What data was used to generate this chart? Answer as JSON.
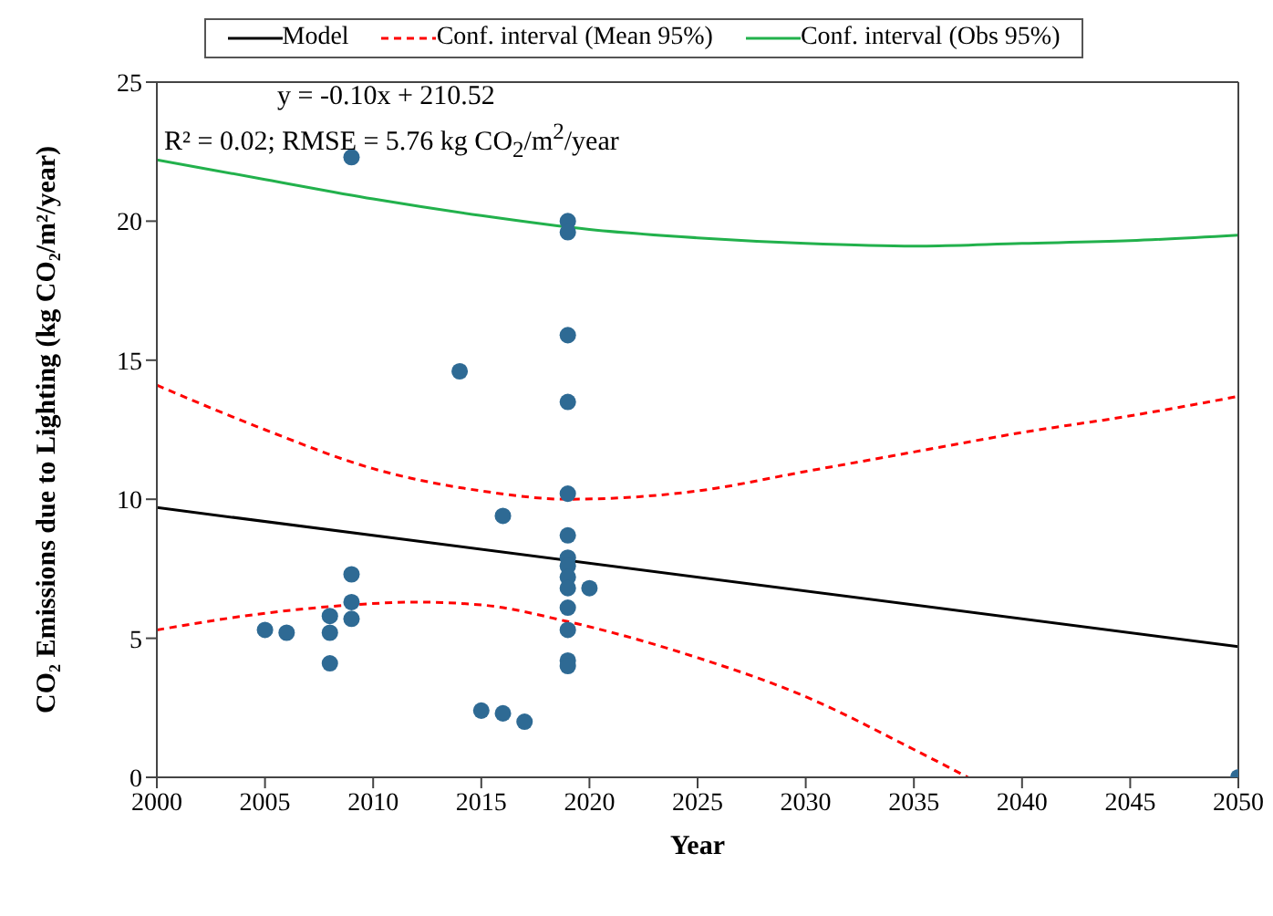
{
  "chart_data": {
    "type": "scatter",
    "xlabel": "Year",
    "ylabel": "CO₂ Emissions due to Lighting (kg CO₂/m²/year)",
    "xlim": [
      2000,
      2050
    ],
    "xticks": [
      2000,
      2005,
      2010,
      2015,
      2020,
      2025,
      2030,
      2035,
      2040,
      2045,
      2050
    ],
    "ylim": [
      0,
      25
    ],
    "yticks": [
      0,
      5,
      10,
      15,
      20,
      25
    ],
    "legend": "top",
    "annotations": [
      "y = -0.10x + 210.52",
      "R² = 0.02; RMSE = 5.76 kg CO$_{2}$/m$^{2}$/year"
    ],
    "series": [
      {
        "color": "#2e6a94",
        "marker": "circle",
        "x": [
          2005,
          2006,
          2008,
          2008,
          2008,
          2009,
          2009,
          2009,
          2009,
          2014,
          2015,
          2016,
          2016,
          2017,
          2019,
          2019,
          2019,
          2019,
          2019,
          2019,
          2019,
          2019,
          2019,
          2019,
          2019,
          2019,
          2019,
          2019,
          2020,
          2050
        ],
        "values": [
          5.3,
          5.2,
          5.8,
          5.2,
          4.1,
          22.3,
          7.3,
          6.3,
          5.7,
          14.6,
          2.4,
          9.4,
          2.3,
          2.0,
          20.0,
          19.6,
          15.9,
          13.5,
          10.2,
          8.7,
          7.9,
          7.6,
          7.2,
          6.8,
          6.1,
          5.3,
          4.2,
          4.0,
          6.8,
          0
        ]
      },
      {
        "type": "line",
        "name": "Model",
        "color": "#000000",
        "marker": "none",
        "line_style": "solid",
        "x": [
          2000,
          2050
        ],
        "values": [
          9.7,
          4.7
        ]
      },
      {
        "type": "line",
        "name": "Conf. interval (Mean 95%)",
        "color": "#ff0000",
        "marker": "none",
        "line_style": "dashed",
        "x": [
          2000,
          2005,
          2010,
          2015,
          2019,
          2025,
          2030,
          2035,
          2040,
          2045,
          2050
        ],
        "values": [
          14.1,
          12.5,
          11.1,
          10.3,
          10.0,
          10.3,
          11.0,
          11.7,
          12.4,
          13.0,
          13.7
        ]
      },
      {
        "type": "line",
        "color": "#ff0000",
        "marker": "none",
        "line_style": "dashed",
        "x": [
          2000,
          2005,
          2009,
          2012,
          2015,
          2019,
          2025,
          2030,
          2035,
          2037.5
        ],
        "values": [
          5.3,
          5.9,
          6.2,
          6.3,
          6.2,
          5.6,
          4.3,
          2.9,
          1.0,
          0
        ]
      },
      {
        "type": "line",
        "name": "Conf. interval (Obs 95%)",
        "color": "#22b14c",
        "marker": "none",
        "line_style": "solid",
        "x": [
          2000,
          2005,
          2010,
          2015,
          2020,
          2025,
          2030,
          2035,
          2040,
          2045,
          2050
        ],
        "values": [
          22.2,
          21.5,
          20.8,
          20.2,
          19.7,
          19.4,
          19.2,
          19.1,
          19.2,
          19.3,
          19.5
        ]
      }
    ]
  }
}
